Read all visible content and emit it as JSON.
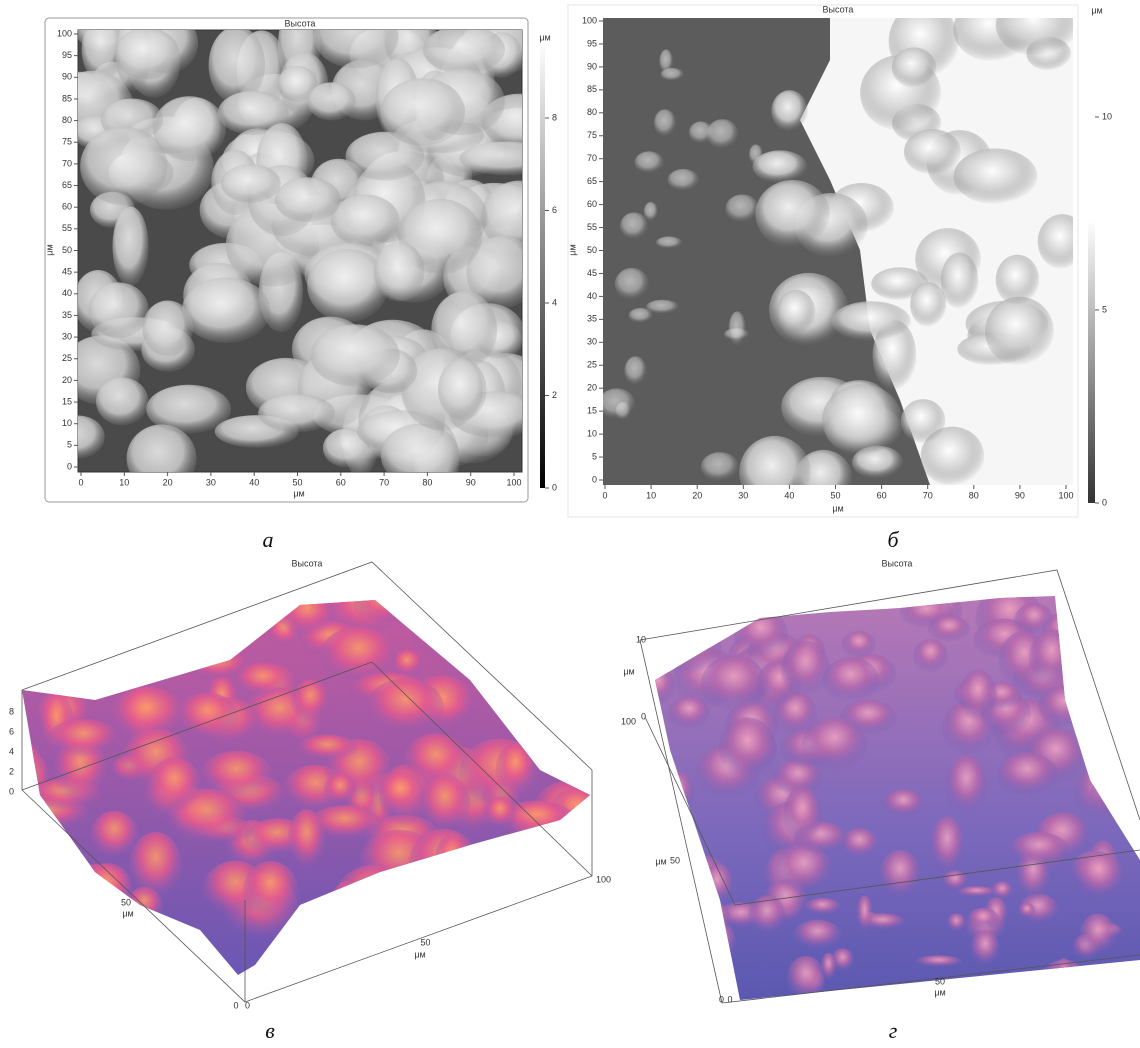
{
  "panels": [
    {
      "title": "Высота",
      "xticks": [
        0,
        10,
        20,
        30,
        40,
        50,
        60,
        70,
        80,
        90,
        100
      ],
      "yticks": [
        0,
        5,
        10,
        15,
        20,
        25,
        30,
        35,
        40,
        45,
        50,
        55,
        60,
        65,
        70,
        75,
        80,
        85,
        90,
        95,
        100
      ],
      "x_label": "μм",
      "y_label": "μм",
      "colorbar_label": "μм",
      "colorbar_ticks": [
        0,
        2,
        4,
        6,
        8
      ],
      "caption": "а"
    },
    {
      "title": "Высота",
      "xticks": [
        0,
        10,
        20,
        30,
        40,
        50,
        60,
        70,
        80,
        90,
        100
      ],
      "yticks": [
        0,
        5,
        10,
        15,
        20,
        25,
        30,
        35,
        40,
        45,
        50,
        55,
        60,
        65,
        70,
        75,
        80,
        85,
        90,
        95,
        100
      ],
      "x_label": "μм",
      "y_label": "μм",
      "colorbar_label": "μм",
      "colorbar_ticks": [
        0,
        5,
        10
      ],
      "caption": "б"
    },
    {
      "title": "Высота",
      "z_ticks": [
        0,
        2,
        4,
        6,
        8
      ],
      "y_ticks": [
        0,
        50
      ],
      "y_label": "μм",
      "x_ticks": [
        0,
        50,
        100
      ],
      "x_label": "μм",
      "caption": "в"
    },
    {
      "title": "Высота",
      "z_ticks": [
        0,
        10
      ],
      "z_label": "μм",
      "y_ticks": [
        0,
        50,
        100
      ],
      "y_label": "μм",
      "x_ticks": [
        0,
        50
      ],
      "x_label": "μм",
      "caption": "г"
    }
  ]
}
